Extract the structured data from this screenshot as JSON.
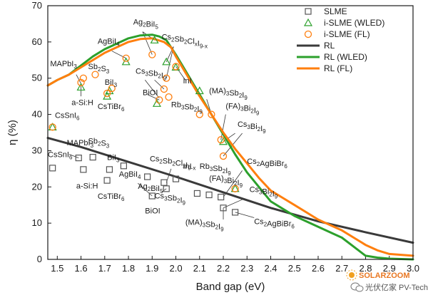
{
  "chart_data": {
    "type": "scatter",
    "xlabel": "Band gap (eV)",
    "ylabel": "η (%)",
    "xlim": [
      1.46,
      3.0
    ],
    "ylim": [
      0,
      70
    ],
    "x_ticks": [
      1.5,
      1.6,
      1.7,
      1.8,
      1.9,
      2.0,
      2.1,
      2.2,
      2.3,
      2.4,
      2.5,
      2.6,
      2.7,
      2.8,
      2.9,
      3.0
    ],
    "x_tick_labels": [
      "1.5",
      "1.6",
      "1.7",
      "1.8",
      "1.9",
      "2.0",
      "2.1",
      "2.2",
      "2.3",
      "2.4",
      "2.5",
      "2.6",
      "2.7",
      "2.8",
      "2.9",
      "3.0"
    ],
    "y_ticks": [
      0,
      10,
      20,
      30,
      40,
      50,
      60,
      70
    ],
    "y_tick_labels": [
      "0",
      "10",
      "20",
      "30",
      "40",
      "50",
      "60",
      "70"
    ],
    "legend": {
      "position": "top-right",
      "entries": [
        "SLME",
        "i-SLME (WLED)",
        "i-SLME (FL)",
        "RL",
        "RL (WLED)",
        "RL (FL)"
      ]
    },
    "colors": {
      "slme": "#555555",
      "wled": "#2ca02c",
      "fl": "#ff7f0e",
      "rl": "#3a3a3a",
      "rl_wled": "#2ca02c",
      "rl_fl": "#ff7f0e"
    },
    "series": [
      {
        "name": "SLME",
        "kind": "scatter",
        "marker": "square",
        "x": [
          1.48,
          1.59,
          1.61,
          1.65,
          1.71,
          1.72,
          1.78,
          1.88,
          1.9,
          1.95,
          1.96,
          2.0,
          2.09,
          2.14,
          2.19,
          2.2,
          2.25
        ],
        "y": [
          25.2,
          28.0,
          24.8,
          28.2,
          21.8,
          24.8,
          25.8,
          22.8,
          17.5,
          21.2,
          19.5,
          22.2,
          18.2,
          17.8,
          17.2,
          14.2,
          13.0
        ]
      },
      {
        "name": "i-SLME (WLED)",
        "kind": "scatter",
        "marker": "triangle",
        "x": [
          1.48,
          1.6,
          1.71,
          1.72,
          1.79,
          1.91,
          1.92,
          1.96,
          2.0,
          2.1,
          2.2,
          2.25
        ],
        "y": [
          36.5,
          47.5,
          45.0,
          46.5,
          54.5,
          60.5,
          43.0,
          54.5,
          53.0,
          46.5,
          32.5,
          19.5
        ]
      },
      {
        "name": "i-SLME (FL)",
        "kind": "scatter",
        "marker": "circle",
        "x": [
          1.48,
          1.6,
          1.61,
          1.66,
          1.71,
          1.73,
          1.79,
          1.9,
          1.93,
          1.95,
          1.96,
          1.97,
          2.0,
          2.1,
          2.15,
          2.19,
          2.2,
          2.25
        ],
        "y": [
          36.5,
          48.8,
          50.0,
          51.0,
          45.8,
          47.2,
          55.5,
          56.5,
          44.0,
          47.0,
          50.0,
          44.8,
          53.2,
          40.0,
          40.0,
          33.0,
          28.5,
          19.5
        ]
      },
      {
        "name": "RL",
        "kind": "line",
        "x": [
          1.46,
          1.6,
          1.8,
          2.0,
          2.2,
          2.4,
          2.6,
          2.8,
          3.0
        ],
        "y": [
          33.5,
          31.0,
          26.9,
          22.8,
          18.5,
          14.2,
          10.5,
          7.5,
          4.6
        ]
      },
      {
        "name": "RL (WLED)",
        "kind": "line",
        "x": [
          1.46,
          1.5,
          1.55,
          1.6,
          1.65,
          1.7,
          1.75,
          1.8,
          1.85,
          1.9,
          1.93,
          1.96,
          2.0,
          2.05,
          2.1,
          2.15,
          2.2,
          2.25,
          2.3,
          2.35,
          2.4,
          2.45,
          2.5,
          2.55,
          2.6,
          2.65,
          2.7,
          2.75,
          2.8,
          2.85,
          2.9,
          3.0
        ],
        "y": [
          48.0,
          49.5,
          51.0,
          53.5,
          56.0,
          58.0,
          59.5,
          61.0,
          61.8,
          62.0,
          61.5,
          60.5,
          56.5,
          51.0,
          45.5,
          40.0,
          34.5,
          29.0,
          24.0,
          20.0,
          16.0,
          14.0,
          12.0,
          10.5,
          9.0,
          7.5,
          6.0,
          3.5,
          1.0,
          0.5,
          0.2,
          0.0
        ]
      },
      {
        "name": "RL (FL)",
        "kind": "line",
        "x": [
          1.46,
          1.5,
          1.55,
          1.6,
          1.65,
          1.7,
          1.75,
          1.8,
          1.85,
          1.9,
          1.95,
          1.98,
          2.0,
          2.05,
          2.1,
          2.15,
          2.2,
          2.25,
          2.3,
          2.35,
          2.4,
          2.45,
          2.5,
          2.55,
          2.6,
          2.65,
          2.7,
          2.75,
          2.8,
          2.85,
          2.9,
          3.0
        ],
        "y": [
          48.0,
          49.5,
          51.0,
          53.0,
          55.0,
          57.0,
          58.5,
          60.0,
          60.8,
          61.0,
          60.0,
          58.5,
          56.0,
          50.5,
          45.0,
          40.0,
          35.0,
          30.5,
          26.5,
          22.5,
          19.0,
          17.0,
          15.0,
          13.0,
          11.0,
          9.5,
          8.0,
          6.0,
          4.0,
          2.5,
          1.5,
          1.0
        ]
      }
    ],
    "annotations": [
      {
        "parts": [
          [
            "CsSnI",
            false
          ],
          [
            "6",
            true
          ]
        ],
        "x": 1.49,
        "y": 39.0
      },
      {
        "parts": [
          [
            "MAPbI",
            false
          ],
          [
            "3",
            true
          ]
        ],
        "x": 1.47,
        "y": 53.3
      },
      {
        "parts": [
          [
            "a-Si:H",
            false
          ]
        ],
        "x": 1.56,
        "y": 42.6
      },
      {
        "parts": [
          [
            "Sb",
            false
          ],
          [
            "2",
            true
          ],
          [
            "S",
            false
          ],
          [
            "3",
            true
          ]
        ],
        "x": 1.63,
        "y": 52.5
      },
      {
        "parts": [
          [
            "AgBiI",
            false
          ],
          [
            "4",
            true
          ]
        ],
        "x": 1.67,
        "y": 59.5
      },
      {
        "parts": [
          [
            "BiI",
            false
          ],
          [
            "3",
            true
          ]
        ],
        "x": 1.7,
        "y": 48.2
      },
      {
        "parts": [
          [
            "CsTiBr",
            false
          ],
          [
            "6",
            true
          ]
        ],
        "x": 1.67,
        "y": 41.5
      },
      {
        "parts": [
          [
            "Ag",
            false
          ],
          [
            "2",
            true
          ],
          [
            "BiI",
            false
          ],
          [
            "5",
            true
          ]
        ],
        "x": 1.82,
        "y": 64.8
      },
      {
        "parts": [
          [
            "Cs",
            false
          ],
          [
            "2",
            true
          ],
          [
            "Sb",
            false
          ],
          [
            "2",
            true
          ],
          [
            "Cl",
            false
          ],
          [
            "x",
            true
          ],
          [
            "I",
            false
          ],
          [
            "9-x",
            true
          ]
        ],
        "x": 1.94,
        "y": 60.7
      },
      {
        "parts": [
          [
            "Cs",
            false
          ],
          [
            "3",
            true
          ],
          [
            "Sb",
            false
          ],
          [
            "2",
            true
          ],
          [
            "I",
            false
          ],
          [
            "9",
            true
          ]
        ],
        "x": 1.83,
        "y": 51.2
      },
      {
        "parts": [
          [
            "InI",
            false
          ]
        ],
        "x": 2.03,
        "y": 48.6
      },
      {
        "parts": [
          [
            "BiOI",
            false
          ]
        ],
        "x": 1.86,
        "y": 45.3
      },
      {
        "parts": [
          [
            "(MA)",
            false
          ],
          [
            "3",
            true
          ],
          [
            "Sb",
            false
          ],
          [
            "2",
            true
          ],
          [
            "I",
            false
          ],
          [
            "9",
            true
          ]
        ],
        "x": 2.14,
        "y": 45.8
      },
      {
        "parts": [
          [
            "Rb",
            false
          ],
          [
            "3",
            true
          ],
          [
            "Sb",
            false
          ],
          [
            "2",
            true
          ],
          [
            "I",
            false
          ],
          [
            "9",
            true
          ]
        ],
        "x": 1.98,
        "y": 42.0
      },
      {
        "parts": [
          [
            "(FA)",
            false
          ],
          [
            "3",
            true
          ],
          [
            "Bi",
            false
          ],
          [
            "2",
            true
          ],
          [
            "I",
            false
          ],
          [
            "9",
            true
          ]
        ],
        "x": 2.21,
        "y": 41.6
      },
      {
        "parts": [
          [
            "Cs",
            false
          ],
          [
            "3",
            true
          ],
          [
            "Bi",
            false
          ],
          [
            "2",
            true
          ],
          [
            "I",
            false
          ],
          [
            "9",
            true
          ]
        ],
        "x": 2.26,
        "y": 36.6
      },
      {
        "parts": [
          [
            "MAPbI",
            false
          ],
          [
            "3",
            true
          ]
        ],
        "x": 1.54,
        "y": 31.5
      },
      {
        "parts": [
          [
            "Sb",
            false
          ],
          [
            "2",
            true
          ],
          [
            "S",
            false
          ],
          [
            "3",
            true
          ]
        ],
        "x": 1.63,
        "y": 32.0
      },
      {
        "parts": [
          [
            "CsSnI",
            false
          ],
          [
            "6",
            true
          ]
        ],
        "x": 1.46,
        "y": 28.2
      },
      {
        "parts": [
          [
            "BiI",
            false
          ],
          [
            "3",
            true
          ]
        ],
        "x": 1.71,
        "y": 27.4
      },
      {
        "parts": [
          [
            "a-Si:H",
            false
          ]
        ],
        "x": 1.58,
        "y": 19.6
      },
      {
        "parts": [
          [
            "CsTiBr",
            false
          ],
          [
            "6",
            true
          ]
        ],
        "x": 1.67,
        "y": 16.7
      },
      {
        "parts": [
          [
            "AgBiI",
            false
          ],
          [
            "4",
            true
          ]
        ],
        "x": 1.76,
        "y": 22.8
      },
      {
        "parts": [
          [
            "Ag",
            false
          ],
          [
            "2",
            true
          ],
          [
            "BiI",
            false
          ],
          [
            "5",
            true
          ]
        ],
        "x": 1.84,
        "y": 19.5
      },
      {
        "parts": [
          [
            "Cs",
            false
          ],
          [
            "3",
            true
          ],
          [
            "Sb",
            false
          ],
          [
            "2",
            true
          ],
          [
            "I",
            false
          ],
          [
            "9",
            true
          ]
        ],
        "x": 1.91,
        "y": 16.8
      },
      {
        "parts": [
          [
            "BiOI",
            false
          ]
        ],
        "x": 1.87,
        "y": 12.7
      },
      {
        "parts": [
          [
            "Cs",
            false
          ],
          [
            "2",
            true
          ],
          [
            "Sb",
            false
          ],
          [
            "2",
            true
          ],
          [
            "Cl",
            false
          ],
          [
            "x",
            true
          ],
          [
            "I",
            false
          ],
          [
            "9-x",
            true
          ]
        ],
        "x": 1.89,
        "y": 27.0
      },
      {
        "parts": [
          [
            "InI",
            false
          ]
        ],
        "x": 2.03,
        "y": 25.0
      },
      {
        "parts": [
          [
            "Rb",
            false
          ],
          [
            "3",
            true
          ],
          [
            "Sb",
            false
          ],
          [
            "2",
            true
          ],
          [
            "I",
            false
          ],
          [
            "9",
            true
          ]
        ],
        "x": 2.1,
        "y": 25.0
      },
      {
        "parts": [
          [
            "(FA)",
            false
          ],
          [
            "3",
            true
          ],
          [
            "Bi",
            false
          ],
          [
            "2",
            true
          ],
          [
            "I",
            false
          ],
          [
            "9",
            true
          ]
        ],
        "x": 2.14,
        "y": 21.6
      },
      {
        "parts": [
          [
            "Cs",
            false
          ],
          [
            "2",
            true
          ],
          [
            "AgBiBr",
            false
          ],
          [
            "6",
            true
          ]
        ],
        "x": 2.3,
        "y": 26.3
      },
      {
        "parts": [
          [
            "Cs",
            false
          ],
          [
            "3",
            true
          ],
          [
            "Bi",
            false
          ],
          [
            "2",
            true
          ],
          [
            "I",
            false
          ],
          [
            "9",
            true
          ]
        ],
        "x": 2.31,
        "y": 18.6
      },
      {
        "parts": [
          [
            "(MA)",
            false
          ],
          [
            "3",
            true
          ],
          [
            "Sb",
            false
          ],
          [
            "2",
            true
          ],
          [
            "I",
            false
          ],
          [
            "9",
            true
          ]
        ],
        "x": 2.04,
        "y": 9.5
      },
      {
        "parts": [
          [
            "Cs",
            false
          ],
          [
            "2",
            true
          ],
          [
            "AgBiBr",
            false
          ],
          [
            "6",
            true
          ]
        ],
        "x": 2.33,
        "y": 9.7
      }
    ],
    "leaders": [
      [
        1.58,
        51.0,
        1.6,
        48.5
      ],
      [
        1.6,
        45.0,
        1.6,
        47.8
      ],
      [
        1.73,
        57.5,
        1.79,
        55.5
      ],
      [
        1.86,
        62.8,
        1.9,
        56.5
      ],
      [
        1.86,
        62.8,
        1.91,
        60.5
      ],
      [
        1.99,
        58.7,
        1.96,
        54.5
      ],
      [
        1.99,
        58.7,
        1.96,
        50.0
      ],
      [
        1.87,
        49.5,
        1.93,
        44.5
      ],
      [
        1.91,
        49.5,
        1.95,
        47.0
      ],
      [
        2.04,
        49.5,
        2.0,
        53.2
      ],
      [
        1.88,
        45.5,
        1.93,
        44.0
      ],
      [
        2.13,
        44.2,
        2.15,
        40.0
      ],
      [
        2.21,
        40.0,
        2.19,
        33.0
      ],
      [
        2.28,
        34.8,
        2.2,
        28.5
      ],
      [
        2.25,
        34.8,
        2.2,
        32.5
      ],
      [
        1.55,
        29.0,
        1.59,
        28.0
      ],
      [
        1.84,
        21.0,
        1.9,
        17.5
      ],
      [
        1.94,
        18.6,
        1.96,
        19.5
      ],
      [
        1.98,
        25.0,
        1.96,
        21.2
      ],
      [
        2.28,
        24.5,
        2.2,
        17.2
      ],
      [
        2.29,
        16.8,
        2.2,
        14.2
      ],
      [
        2.2,
        11.0,
        2.2,
        14.2
      ],
      [
        2.33,
        11.5,
        2.25,
        13.0
      ]
    ]
  },
  "watermark": {
    "brand": "SOLARZOOM",
    "sub": "光伏亿家 PV-Tech"
  }
}
